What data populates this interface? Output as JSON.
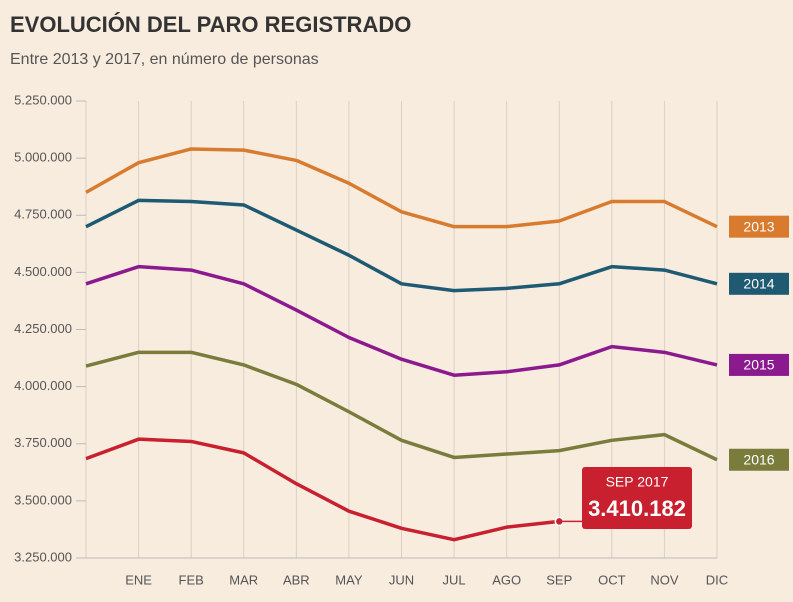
{
  "chart_data": {
    "type": "line",
    "title": "EVOLUCIÓN DEL PARO REGISTRADO",
    "subtitle": "Entre 2013 y 2017, en número de personas",
    "categories": [
      null,
      "ENE",
      "FEB",
      "MAR",
      "ABR",
      "MAY",
      "JUN",
      "JUL",
      "AGO",
      "SEP",
      "OCT",
      "NOV",
      "DIC"
    ],
    "series": [
      {
        "name": "2013",
        "color": "#d97b2f",
        "values": [
          4850000,
          4980000,
          5040000,
          5035000,
          4990000,
          4890000,
          4765000,
          4700000,
          4700000,
          4725000,
          4810000,
          4810000,
          4700000
        ]
      },
      {
        "name": "2014",
        "color": "#1f5a73",
        "values": [
          4700000,
          4815000,
          4810000,
          4795000,
          4685000,
          4575000,
          4450000,
          4420000,
          4430000,
          4450000,
          4525000,
          4510000,
          4450000
        ]
      },
      {
        "name": "2015",
        "color": "#8b1a8f",
        "values": [
          4450000,
          4525000,
          4510000,
          4450000,
          4335000,
          4215000,
          4120000,
          4050000,
          4065000,
          4095000,
          4175000,
          4150000,
          4095000
        ]
      },
      {
        "name": "2016",
        "color": "#7a7c3c",
        "values": [
          4090000,
          4150000,
          4150000,
          4095000,
          4010000,
          3890000,
          3765000,
          3690000,
          3705000,
          3720000,
          3765000,
          3790000,
          3680000
        ]
      },
      {
        "color": "#c8202f",
        "values": [
          3685000,
          3770000,
          3760000,
          3710000,
          3575000,
          3455000,
          3380000,
          3330000,
          3385000,
          3410182,
          null,
          null,
          null
        ],
        "value_labels": [
          null,
          null,
          null,
          null,
          null,
          null,
          null,
          null,
          null,
          "3.410.182",
          null,
          null,
          null
        ]
      }
    ],
    "annotation": "SEP 2017",
    "ylim": [
      3250000,
      5250000
    ],
    "yticks": [
      {
        "value": 3250000,
        "label": "3.250.000"
      },
      {
        "value": 3500000,
        "label": "3.500.000"
      },
      {
        "value": 3750000,
        "label": "3.750.000"
      },
      {
        "value": 4000000,
        "label": "4.000.000"
      },
      {
        "value": 4250000,
        "label": "4.250.000"
      },
      {
        "value": 4500000,
        "label": "4.500.000"
      },
      {
        "value": 4750000,
        "label": "4.750.000"
      },
      {
        "value": 5000000,
        "label": "5.000.000"
      },
      {
        "value": 5250000,
        "label": "5.250.000"
      }
    ],
    "grid": true
  }
}
